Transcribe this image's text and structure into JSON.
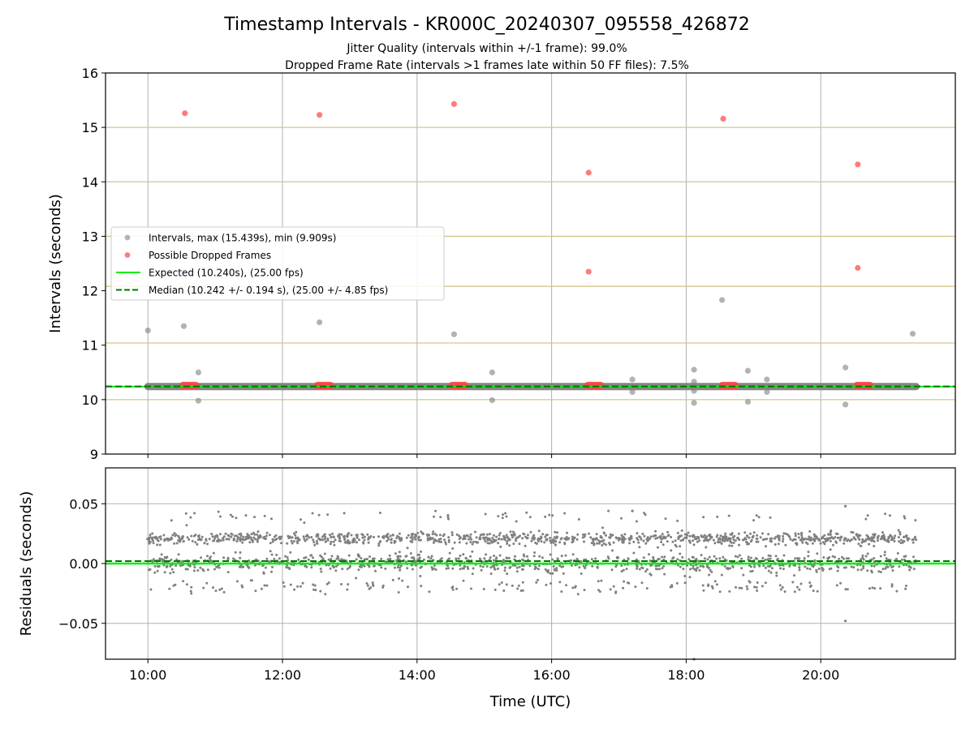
{
  "title": "Timestamp Intervals - KR000C_20240307_095558_426872",
  "subtitle_1": "Jitter Quality (intervals within +/-1 frame): 99.0%",
  "subtitle_2": "Dropped Frame Rate (intervals >1 frames late within 50 FF files): 7.5%",
  "colors": {
    "intervals": "#808080",
    "dropped": "#ff4444",
    "expected": "#00ee00",
    "median": "#007700",
    "frame_lines": "#d4c58e",
    "grid": "#b0b0b0"
  },
  "chart_data": [
    {
      "type": "scatter",
      "ylabel": "Intervals (seconds)",
      "ylim": [
        9,
        16
      ],
      "yticks": [
        9,
        10,
        11,
        12,
        13,
        14,
        15,
        16
      ],
      "x_range_hours": [
        9.37,
        22.0
      ],
      "xticks": [
        10,
        12,
        14,
        16,
        18,
        20
      ],
      "grid": true,
      "frame_reference_lines": [
        10.0,
        11.04,
        12.08,
        13.0,
        14.0,
        15.0
      ],
      "expected": 10.24,
      "median": 10.242,
      "legend_placement": "center-left",
      "legend": [
        "Intervals, max (15.439s), min (9.909s)",
        "Possible Dropped Frames",
        "Expected (10.240s), (25.00 fps)",
        "Median (10.242 +/- 0.194 s), (25.00 +/- 4.85 fps)"
      ],
      "series": [
        {
          "name": "Intervals, max (15.439s), min (9.909s)",
          "baseline": 10.24,
          "x_start": "10:00",
          "x_end": "21:25",
          "outliers": [
            {
              "x": "10:00",
              "y": 11.27
            },
            {
              "x": "10:32",
              "y": 11.35
            },
            {
              "x": "10:45",
              "y": 10.5
            },
            {
              "x": "10:45",
              "y": 9.98
            },
            {
              "x": "12:33",
              "y": 11.42
            },
            {
              "x": "14:33",
              "y": 11.2
            },
            {
              "x": "15:07",
              "y": 10.5
            },
            {
              "x": "15:07",
              "y": 9.99
            },
            {
              "x": "17:12",
              "y": 10.37
            },
            {
              "x": "17:12",
              "y": 10.14
            },
            {
              "x": "18:07",
              "y": 10.55
            },
            {
              "x": "18:07",
              "y": 10.33
            },
            {
              "x": "18:07",
              "y": 10.16
            },
            {
              "x": "18:07",
              "y": 9.94
            },
            {
              "x": "18:32",
              "y": 11.83
            },
            {
              "x": "18:55",
              "y": 10.53
            },
            {
              "x": "18:55",
              "y": 9.96
            },
            {
              "x": "19:12",
              "y": 10.37
            },
            {
              "x": "19:12",
              "y": 10.14
            },
            {
              "x": "20:22",
              "y": 10.59
            },
            {
              "x": "20:22",
              "y": 9.91
            },
            {
              "x": "21:22",
              "y": 11.21
            }
          ]
        },
        {
          "name": "Possible Dropped Frames",
          "clusters": [
            {
              "x": "10:37",
              "y": 10.26
            },
            {
              "x": "12:37",
              "y": 10.26
            },
            {
              "x": "14:37",
              "y": 10.26
            },
            {
              "x": "16:38",
              "y": 10.26
            },
            {
              "x": "18:38",
              "y": 10.26
            },
            {
              "x": "20:38",
              "y": 10.26
            }
          ],
          "points": [
            {
              "x": "10:33",
              "y": 15.26
            },
            {
              "x": "12:33",
              "y": 15.23
            },
            {
              "x": "14:33",
              "y": 15.43
            },
            {
              "x": "16:33",
              "y": 14.17
            },
            {
              "x": "16:33",
              "y": 12.35
            },
            {
              "x": "18:33",
              "y": 15.16
            },
            {
              "x": "20:33",
              "y": 14.32
            },
            {
              "x": "20:33",
              "y": 12.42
            }
          ]
        }
      ]
    },
    {
      "type": "scatter",
      "xlabel": "Time (UTC)",
      "ylabel": "Residuals (seconds)",
      "ylim": [
        -0.08,
        0.08
      ],
      "yticks": [
        0.05,
        0.0,
        -0.05
      ],
      "ytick_labels": [
        "0.05",
        "0.00",
        "−0.05"
      ],
      "xticks": [
        10,
        12,
        14,
        16,
        18,
        20
      ],
      "xtick_labels": [
        "10:00",
        "12:00",
        "14:00",
        "16:00",
        "18:00",
        "20:00"
      ],
      "grid": true,
      "expected": 0.0,
      "median": 0.002,
      "series": [
        {
          "name": "Residuals",
          "x_start": "09:59",
          "x_end": "21:25",
          "bands": [
            {
              "center": 0.021,
              "spread": 0.0025,
              "share": 0.47
            },
            {
              "center": 0.0,
              "spread": 0.004,
              "share": 0.43
            },
            {
              "center": -0.019,
              "spread": 0.003,
              "share": 0.07
            },
            {
              "center": 0.039,
              "spread": 0.003,
              "share": 0.03
            }
          ],
          "extremes": [
            {
              "x": "20:22",
              "y": 0.048
            },
            {
              "x": "20:22",
              "y": -0.048
            },
            {
              "x": "17:12",
              "y": 0.044
            },
            {
              "x": "18:07",
              "y": -0.08
            }
          ]
        }
      ]
    }
  ]
}
